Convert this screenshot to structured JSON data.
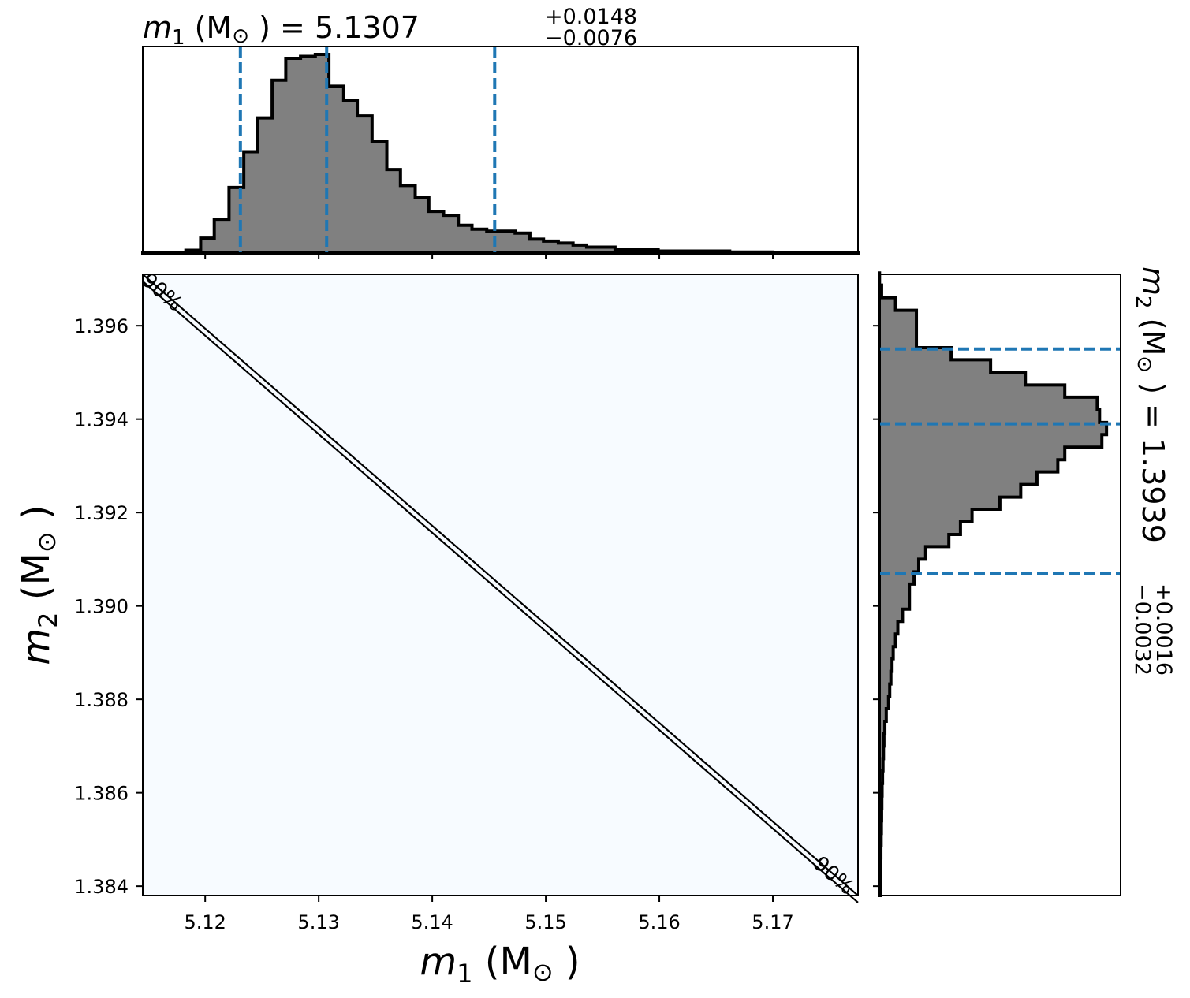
{
  "chart_data": [
    {
      "panel": "top-histogram",
      "type": "step-histogram",
      "title": {
        "var": "m",
        "sub": "1",
        "unit": "(M",
        "sun": "⊙",
        "close": ")",
        "eq": "= 5.1307",
        "plus": "+0.0148",
        "minus": "−0.0076"
      },
      "xlim": [
        5.1145,
        5.1775
      ],
      "ylim": [
        0,
        1.0
      ],
      "fill_color": "#808080",
      "line_color": "#000000",
      "quantile_color": "#1f77b4",
      "quantiles": [
        5.1231,
        5.1307,
        5.1455
      ],
      "bin_edges": [
        5.1145,
        5.1158,
        5.117,
        5.1183,
        5.1196,
        5.1208,
        5.1221,
        5.1234,
        5.1246,
        5.1259,
        5.1271,
        5.1284,
        5.1297,
        5.1309,
        5.1322,
        5.1334,
        5.1347,
        5.136,
        5.1372,
        5.1385,
        5.1397,
        5.141,
        5.1423,
        5.1435,
        5.1448,
        5.146,
        5.1473,
        5.1486,
        5.1498,
        5.1511,
        5.1524,
        5.1536,
        5.1549,
        5.1561,
        5.1574,
        5.1587,
        5.1599,
        5.1612,
        5.1624,
        5.1637,
        5.165,
        5.1662,
        5.1675,
        5.1688,
        5.17,
        5.1713,
        5.1725,
        5.1738,
        5.1751,
        5.1763,
        5.1775
      ],
      "counts": [
        0.001,
        0.002,
        0.004,
        0.014,
        0.075,
        0.17,
        0.33,
        0.51,
        0.68,
        0.87,
        0.98,
        0.99,
        1.0,
        0.84,
        0.77,
        0.69,
        0.56,
        0.42,
        0.34,
        0.28,
        0.21,
        0.19,
        0.14,
        0.12,
        0.11,
        0.11,
        0.1,
        0.07,
        0.06,
        0.05,
        0.04,
        0.03,
        0.03,
        0.02,
        0.02,
        0.02,
        0.01,
        0.01,
        0.01,
        0.01,
        0.01,
        0.005,
        0.005,
        0.005,
        0.004,
        0.003,
        0.003,
        0.002,
        0.002,
        0.001
      ]
    },
    {
      "panel": "joint-contour",
      "type": "contour",
      "xlabel": {
        "var": "m",
        "sub": "1",
        "rest": " (M",
        "sun": "⊙",
        "close": ")"
      },
      "ylabel": {
        "var": "m",
        "sub": "2",
        "rest": " (M",
        "sun": "⊙",
        "close": ")"
      },
      "xlim": [
        5.1145,
        5.1775
      ],
      "ylim": [
        1.3838,
        1.3971
      ],
      "xticks": [
        "5.12",
        "5.13",
        "5.14",
        "5.15",
        "5.16",
        "5.17"
      ],
      "xtick_values": [
        5.12,
        5.13,
        5.14,
        5.15,
        5.16,
        5.17
      ],
      "yticks": [
        "1.384",
        "1.386",
        "1.388",
        "1.390",
        "1.392",
        "1.394",
        "1.396"
      ],
      "ytick_values": [
        1.384,
        1.386,
        1.388,
        1.39,
        1.392,
        1.394,
        1.396
      ],
      "background": "#f7fbff",
      "contours": [
        {
          "label": "90%",
          "points": [
            [
              5.1145,
              1.3971
            ],
            [
              5.1775,
              1.3838
            ]
          ]
        },
        {
          "label": "90%",
          "points": [
            [
              5.1145,
              1.39695
            ],
            [
              5.1775,
              1.38365
            ]
          ]
        }
      ],
      "contour_label_top": "90%",
      "contour_label_bottom": "90%"
    },
    {
      "panel": "right-histogram",
      "type": "step-histogram-horizontal",
      "title": {
        "var": "m",
        "sub": "2",
        "unit": "(M",
        "sun": "⊙",
        "close": ")",
        "eq": "= 1.3939",
        "plus": "+0.0016",
        "minus": "−0.0032"
      },
      "ylim": [
        1.3838,
        1.3971
      ],
      "xlim": [
        0,
        1.0
      ],
      "fill_color": "#808080",
      "line_color": "#000000",
      "quantile_color": "#1f77b4",
      "quantiles": [
        1.3907,
        1.3939,
        1.3955
      ],
      "bin_edges": [
        1.3838,
        1.38407,
        1.38433,
        1.3846,
        1.38487,
        1.38513,
        1.3854,
        1.38567,
        1.38593,
        1.3862,
        1.38647,
        1.38673,
        1.387,
        1.38727,
        1.38753,
        1.3878,
        1.38807,
        1.38833,
        1.3886,
        1.38887,
        1.38913,
        1.3894,
        1.38967,
        1.38993,
        1.3902,
        1.39047,
        1.39073,
        1.391,
        1.39127,
        1.39153,
        1.3918,
        1.39207,
        1.39233,
        1.3926,
        1.39287,
        1.39313,
        1.3934,
        1.39367,
        1.39393,
        1.3942,
        1.39447,
        1.39473,
        1.395,
        1.39527,
        1.39553,
        1.3958,
        1.39607,
        1.39633,
        1.3966,
        1.39687,
        1.39713
      ],
      "counts": [
        0.005,
        0.005,
        0.006,
        0.007,
        0.008,
        0.009,
        0.01,
        0.011,
        0.012,
        0.014,
        0.016,
        0.018,
        0.02,
        0.024,
        0.03,
        0.04,
        0.045,
        0.05,
        0.055,
        0.06,
        0.07,
        0.08,
        0.1,
        0.13,
        0.13,
        0.15,
        0.17,
        0.2,
        0.3,
        0.35,
        0.4,
        0.52,
        0.61,
        0.68,
        0.77,
        0.8,
        0.96,
        0.98,
        0.95,
        0.94,
        0.8,
        0.63,
        0.48,
        0.31,
        0.16,
        0.16,
        0.16,
        0.07,
        0.01,
        0.001
      ]
    }
  ]
}
